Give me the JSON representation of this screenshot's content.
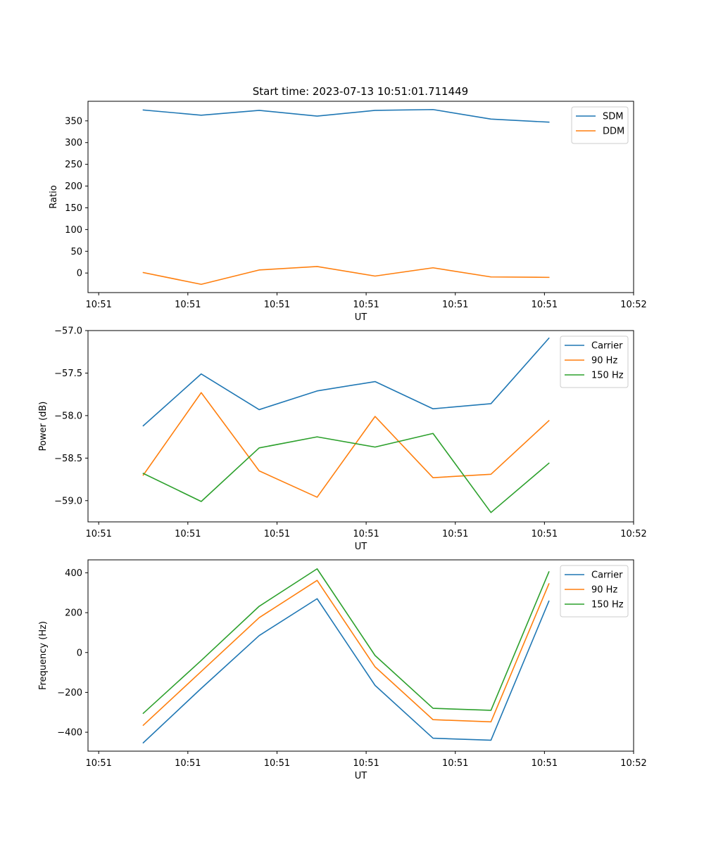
{
  "figure_title": "Start time: 2023-07-13 10:51:01.711449",
  "colors": {
    "c0": "#1f77b4",
    "c1": "#ff7f0e",
    "c2": "#2ca02c"
  },
  "chart_data": [
    {
      "type": "line",
      "title": "Start time: 2023-07-13 10:51:01.711449",
      "xlabel": "UT",
      "ylabel": "Ratio",
      "x_ticks": [
        0,
        1,
        2,
        3,
        4,
        5,
        6
      ],
      "x_tick_labels": [
        "10:51",
        "10:51",
        "10:51",
        "10:51",
        "10:51",
        "10:51",
        "10:52"
      ],
      "xlim": [
        -0.12,
        6.0
      ],
      "x": [
        0.5,
        1.15,
        1.8,
        2.45,
        3.1,
        3.75,
        4.4,
        5.05
      ],
      "ylim": [
        -45,
        395
      ],
      "y_ticks": [
        0,
        50,
        100,
        150,
        200,
        250,
        300,
        350
      ],
      "y_tick_labels": [
        "0",
        "50",
        "100",
        "150",
        "200",
        "250",
        "300",
        "350"
      ],
      "legend": "top-right",
      "series": [
        {
          "name": "SDM",
          "color": "#1f77b4",
          "values": [
            375,
            363,
            374,
            361,
            374,
            376,
            354,
            347
          ]
        },
        {
          "name": "DDM",
          "color": "#ff7f0e",
          "values": [
            1,
            -26,
            7,
            15,
            -7,
            12,
            -9,
            -10
          ]
        }
      ]
    },
    {
      "type": "line",
      "title": "",
      "xlabel": "UT",
      "ylabel": "Power (dB)",
      "x_ticks": [
        0,
        1,
        2,
        3,
        4,
        5,
        6
      ],
      "x_tick_labels": [
        "10:51",
        "10:51",
        "10:51",
        "10:51",
        "10:51",
        "10:51",
        "10:52"
      ],
      "xlim": [
        -0.12,
        6.0
      ],
      "x": [
        0.5,
        1.15,
        1.8,
        2.45,
        3.1,
        3.75,
        4.4,
        5.05
      ],
      "ylim": [
        -59.25,
        -57.0
      ],
      "y_ticks": [
        -59.0,
        -58.5,
        -58.0,
        -57.5,
        -57.0
      ],
      "y_tick_labels": [
        "−59.0",
        "−58.5",
        "−58.0",
        "−57.5",
        "−57.0"
      ],
      "legend": "top-right",
      "series": [
        {
          "name": "Carrier",
          "color": "#1f77b4",
          "values": [
            -58.12,
            -57.51,
            -57.93,
            -57.71,
            -57.6,
            -57.92,
            -57.86,
            -57.09
          ]
        },
        {
          "name": "90 Hz",
          "color": "#ff7f0e",
          "values": [
            -58.7,
            -57.73,
            -58.65,
            -58.96,
            -58.01,
            -58.73,
            -58.69,
            -58.06
          ]
        },
        {
          "name": "150 Hz",
          "color": "#2ca02c",
          "values": [
            -58.68,
            -59.01,
            -58.38,
            -58.25,
            -58.37,
            -58.21,
            -59.14,
            -58.56
          ]
        }
      ]
    },
    {
      "type": "line",
      "title": "",
      "xlabel": "UT",
      "ylabel": "Frequency (Hz)",
      "x_ticks": [
        0,
        1,
        2,
        3,
        4,
        5,
        6
      ],
      "x_tick_labels": [
        "10:51",
        "10:51",
        "10:51",
        "10:51",
        "10:51",
        "10:51",
        "10:52"
      ],
      "xlim": [
        -0.12,
        6.0
      ],
      "x": [
        0.5,
        1.15,
        1.8,
        2.45,
        3.1,
        3.75,
        4.4,
        5.05
      ],
      "ylim": [
        -495,
        465
      ],
      "y_ticks": [
        -400,
        -200,
        0,
        200,
        400
      ],
      "y_tick_labels": [
        "−400",
        "−200",
        "0",
        "200",
        "400"
      ],
      "legend": "top-right",
      "series": [
        {
          "name": "Carrier",
          "color": "#1f77b4",
          "values": [
            -453,
            -180,
            85,
            270,
            -165,
            -430,
            -440,
            258
          ]
        },
        {
          "name": "90 Hz",
          "color": "#ff7f0e",
          "values": [
            -365,
            -95,
            175,
            362,
            -72,
            -337,
            -348,
            345
          ]
        },
        {
          "name": "150 Hz",
          "color": "#2ca02c",
          "values": [
            -305,
            -40,
            232,
            420,
            -15,
            -280,
            -290,
            405
          ]
        }
      ]
    }
  ]
}
